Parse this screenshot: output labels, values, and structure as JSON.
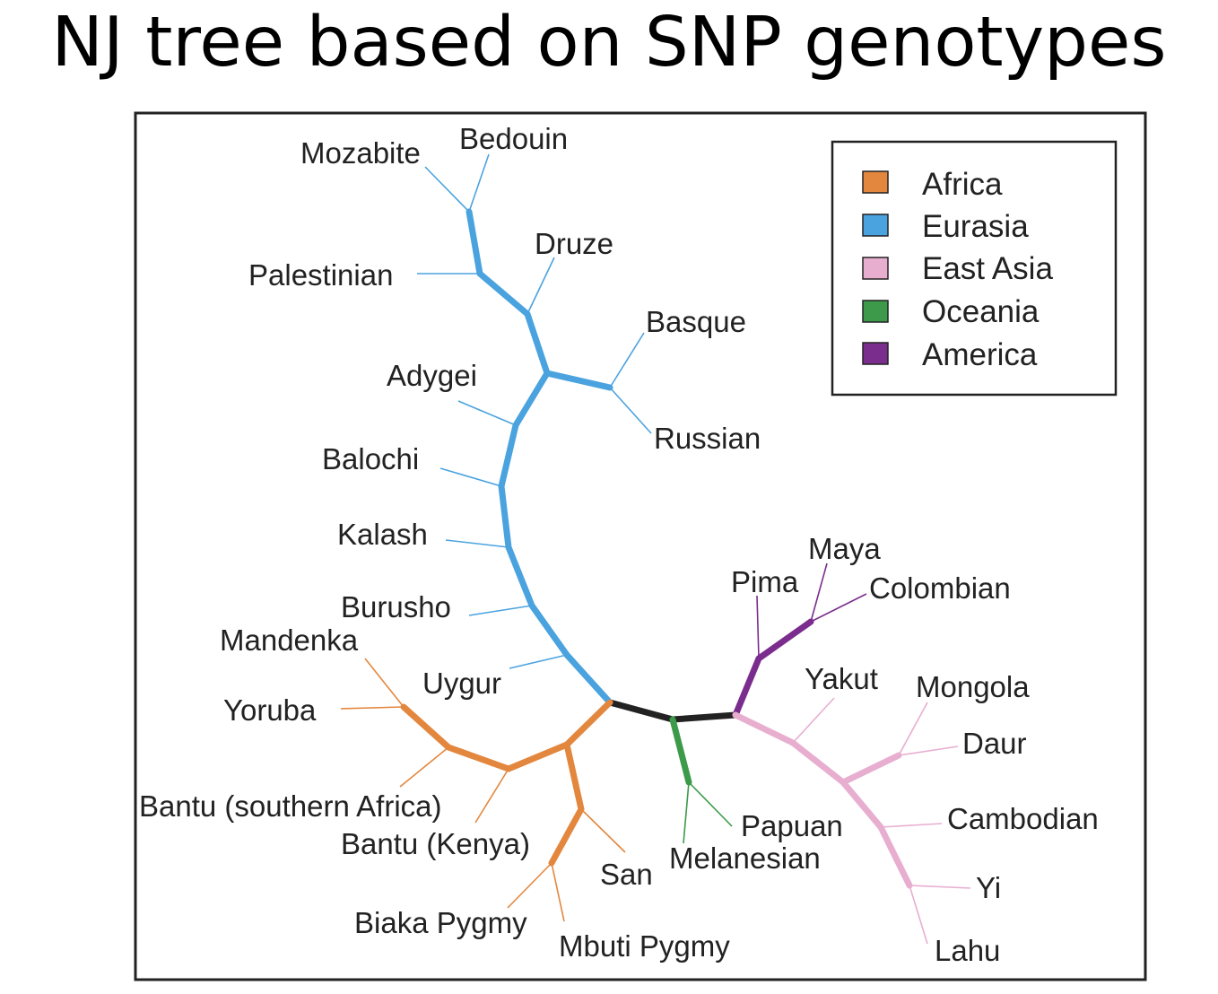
{
  "title": "NJ tree based on SNP genotypes",
  "legend": [
    {
      "label": "Africa",
      "color": "#e3873e"
    },
    {
      "label": "Eurasia",
      "color": "#4aa3df"
    },
    {
      "label": "East Asia",
      "color": "#e8aed0"
    },
    {
      "label": "Oceania",
      "color": "#3c9a4a"
    },
    {
      "label": "America",
      "color": "#7b2d8e"
    }
  ],
  "colors": {
    "root": "#222222"
  },
  "taxa": {
    "africa": [
      "Mandenka",
      "Yoruba",
      "Bantu (southern Africa)",
      "Bantu (Kenya)",
      "San",
      "Biaka Pygmy",
      "Mbuti Pygmy"
    ],
    "eurasia": [
      "Mozabite",
      "Bedouin",
      "Druze",
      "Palestinian",
      "Basque",
      "Russian",
      "Adygei",
      "Balochi",
      "Kalash",
      "Burusho",
      "Uygur"
    ],
    "oceania": [
      "Papuan",
      "Melanesian"
    ],
    "america": [
      "Maya",
      "Pima",
      "Colombian"
    ],
    "east_asia": [
      "Yakut",
      "Mongola",
      "Daur",
      "Cambodian",
      "Yi",
      "Lahu"
    ]
  }
}
